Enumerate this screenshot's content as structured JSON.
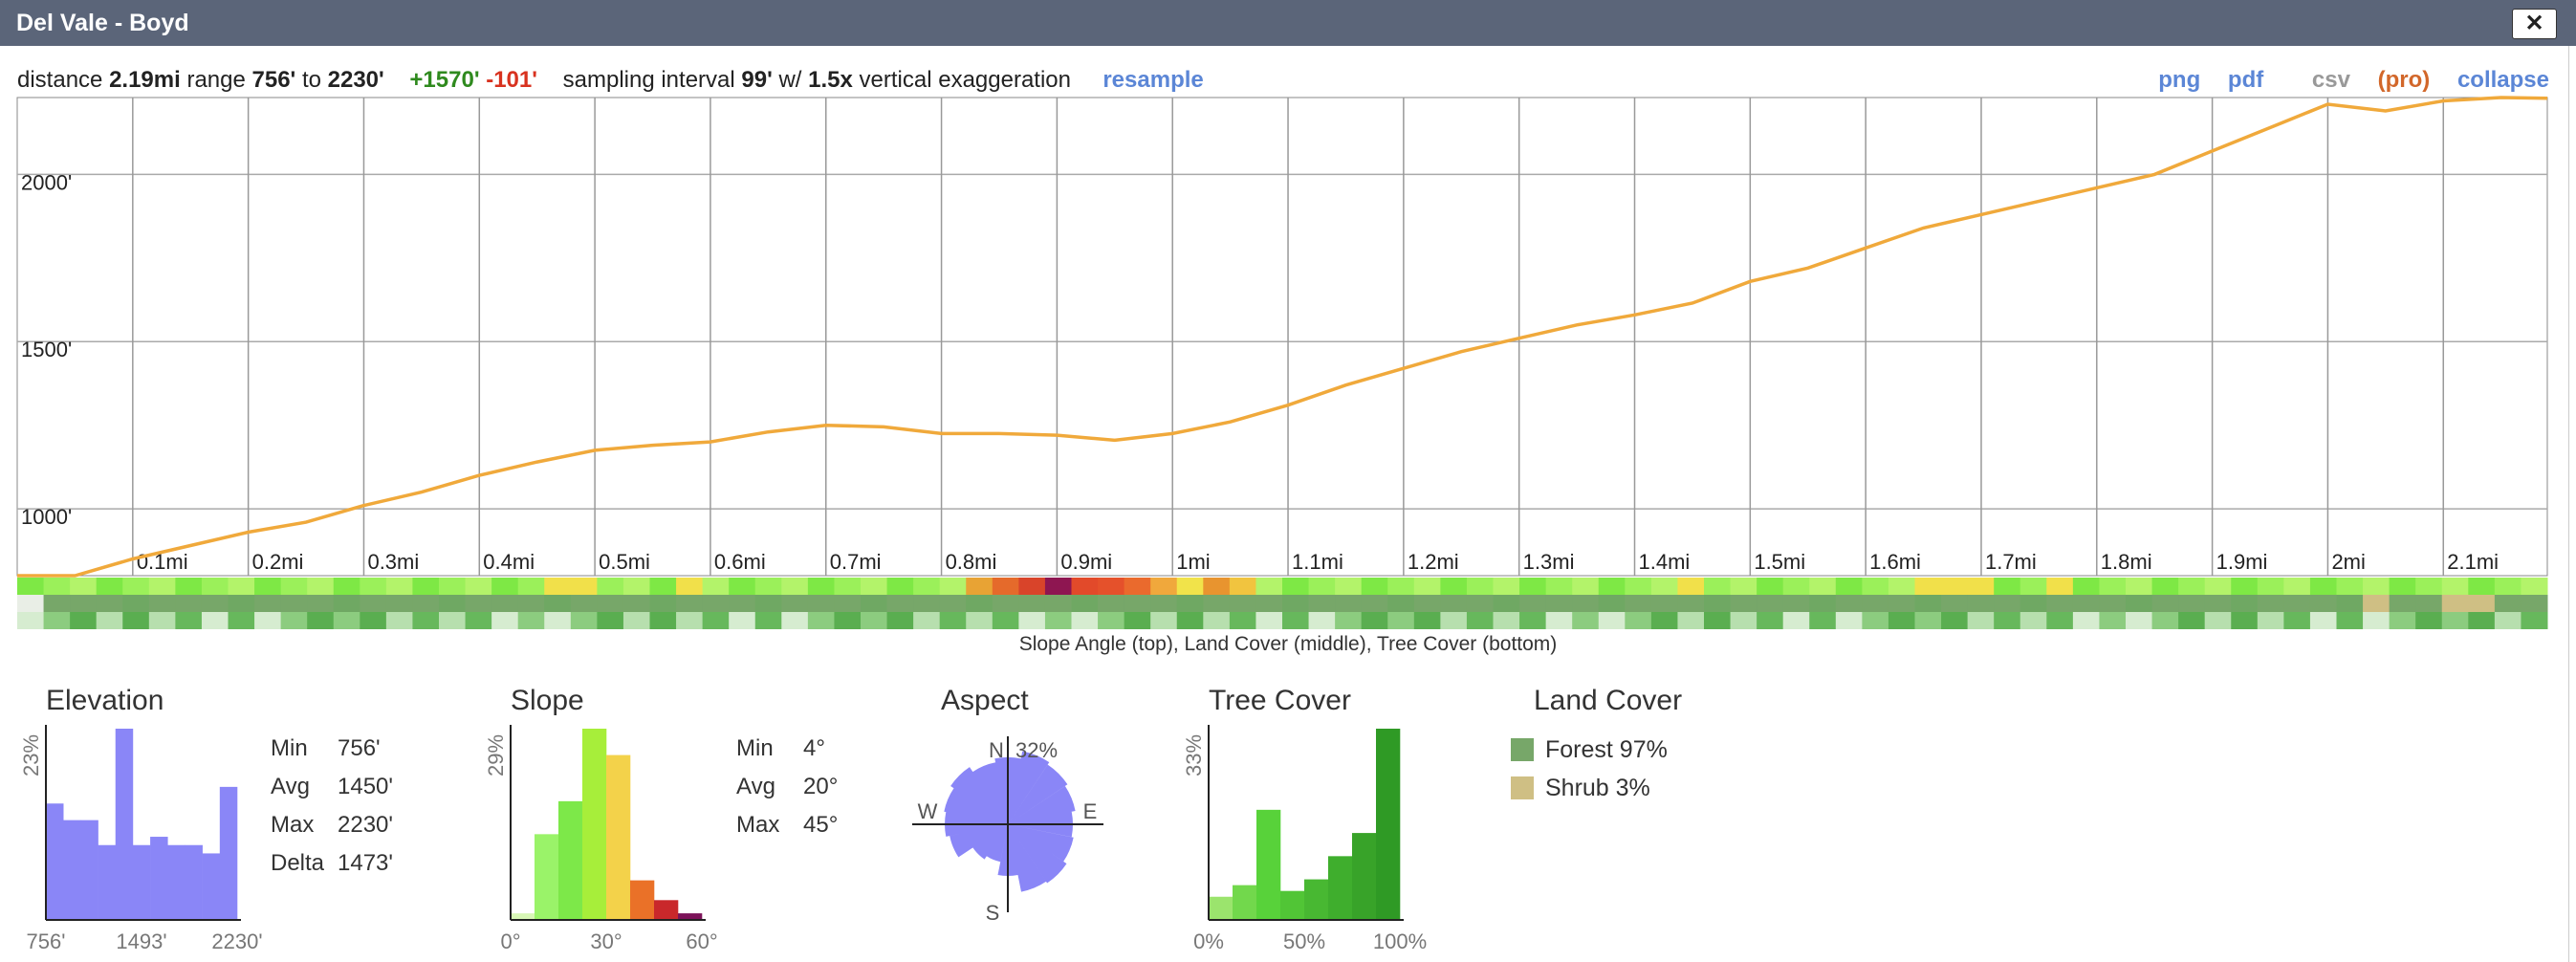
{
  "window": {
    "title": "Del Vale - Boyd",
    "close_label": "✕",
    "close_icon": "close-icon"
  },
  "summary": {
    "distance_label": "distance",
    "distance": "2.19mi",
    "range_label": "range",
    "range_min": "756'",
    "to": "to",
    "range_max": "2230'",
    "gain": "+1570'",
    "loss": "-101'",
    "interval_label": "sampling interval",
    "interval": "99'",
    "w": "w/",
    "exaggeration": "1.5x",
    "exaggeration_label": "vertical exaggeration",
    "resample": "resample"
  },
  "actions": {
    "png": "png",
    "pdf": "pdf",
    "csv": "csv",
    "pro": "(pro)",
    "collapse": "collapse"
  },
  "profile": {
    "y_labels": [
      "2000'",
      "1500'",
      "1000'"
    ],
    "x_labels": [
      "0.1mi",
      "0.2mi",
      "0.3mi",
      "0.4mi",
      "0.5mi",
      "0.6mi",
      "0.7mi",
      "0.8mi",
      "0.9mi",
      "1mi",
      "1.1mi",
      "1.2mi",
      "1.3mi",
      "1.4mi",
      "1.5mi",
      "1.6mi",
      "1.7mi",
      "1.8mi",
      "1.9mi",
      "2mi",
      "2.1mi"
    ],
    "line_color": "#f0a93b",
    "strip_caption": "Slope Angle (top), Land Cover (middle), Tree Cover (bottom)"
  },
  "chart_data": [
    {
      "type": "line",
      "title": "",
      "xlabel": "",
      "ylabel": "",
      "xlim": [
        0,
        2.19
      ],
      "ylim": [
        800,
        2230
      ],
      "series": [
        {
          "name": "",
          "x": [
            0,
            0.05,
            0.1,
            0.15,
            0.2,
            0.25,
            0.3,
            0.35,
            0.4,
            0.45,
            0.5,
            0.55,
            0.6,
            0.65,
            0.7,
            0.75,
            0.8,
            0.85,
            0.9,
            0.95,
            1.0,
            1.05,
            1.1,
            1.15,
            1.2,
            1.25,
            1.3,
            1.35,
            1.4,
            1.45,
            1.5,
            1.55,
            1.6,
            1.65,
            1.7,
            1.75,
            1.8,
            1.85,
            1.9,
            1.95,
            2.0,
            2.05,
            2.1,
            2.15,
            2.19
          ],
          "y": [
            756,
            790,
            850,
            890,
            930,
            960,
            1010,
            1050,
            1100,
            1140,
            1175,
            1190,
            1200,
            1230,
            1250,
            1245,
            1225,
            1225,
            1220,
            1205,
            1225,
            1260,
            1310,
            1370,
            1420,
            1470,
            1510,
            1550,
            1580,
            1615,
            1680,
            1720,
            1780,
            1840,
            1880,
            1920,
            1960,
            2000,
            2070,
            2140,
            2210,
            2190,
            2220,
            2230,
            2228
          ]
        }
      ],
      "grid": true
    },
    {
      "type": "bar",
      "title": "Elevation",
      "ylabel": "23%",
      "x_ticks": [
        "756'",
        "1493'",
        "2230'"
      ],
      "values": [
        14,
        12,
        12,
        9,
        23,
        9,
        10,
        9,
        9,
        8,
        16
      ],
      "color": "#8a86f7",
      "stats": {
        "min_label": "Min",
        "min": "756'",
        "avg_label": "Avg",
        "avg": "1450'",
        "max_label": "Max",
        "max": "2230'",
        "delta_label": "Delta",
        "delta": "1473'"
      }
    },
    {
      "type": "bar",
      "title": "Slope",
      "ylabel": "29%",
      "x_ticks": [
        "0°",
        "30°",
        "60°"
      ],
      "values": [
        1,
        13,
        18,
        29,
        25,
        6,
        3,
        1
      ],
      "colors": [
        "#d8f7b6",
        "#9af369",
        "#7de849",
        "#a7ee3a",
        "#f3d24a",
        "#ea7128",
        "#c9282b",
        "#7c1259"
      ],
      "stats": {
        "min_label": "Min",
        "min": "4°",
        "avg_label": "Avg",
        "avg": "20°",
        "max_label": "Max",
        "max": "45°"
      }
    },
    {
      "type": "pie",
      "title": "Aspect",
      "max_label": "32%",
      "directions": [
        "N",
        "E",
        "S",
        "W"
      ],
      "color": "#8a86f7"
    },
    {
      "type": "bar",
      "title": "Tree Cover",
      "ylabel": "33%",
      "x_ticks": [
        "0%",
        "50%",
        "100%"
      ],
      "values": [
        4,
        6,
        19,
        5,
        7,
        11,
        15,
        33
      ],
      "colors": [
        "#9be46d",
        "#72d84c",
        "#58d23a",
        "#51c536",
        "#48b832",
        "#3fae2d",
        "#38a329",
        "#2f9a25"
      ]
    },
    {
      "type": "table",
      "title": "Land Cover",
      "items": [
        {
          "label": "Forest 97%",
          "color": "#77a769"
        },
        {
          "label": "Shrub 3%",
          "color": "#cfbf84"
        }
      ]
    }
  ]
}
